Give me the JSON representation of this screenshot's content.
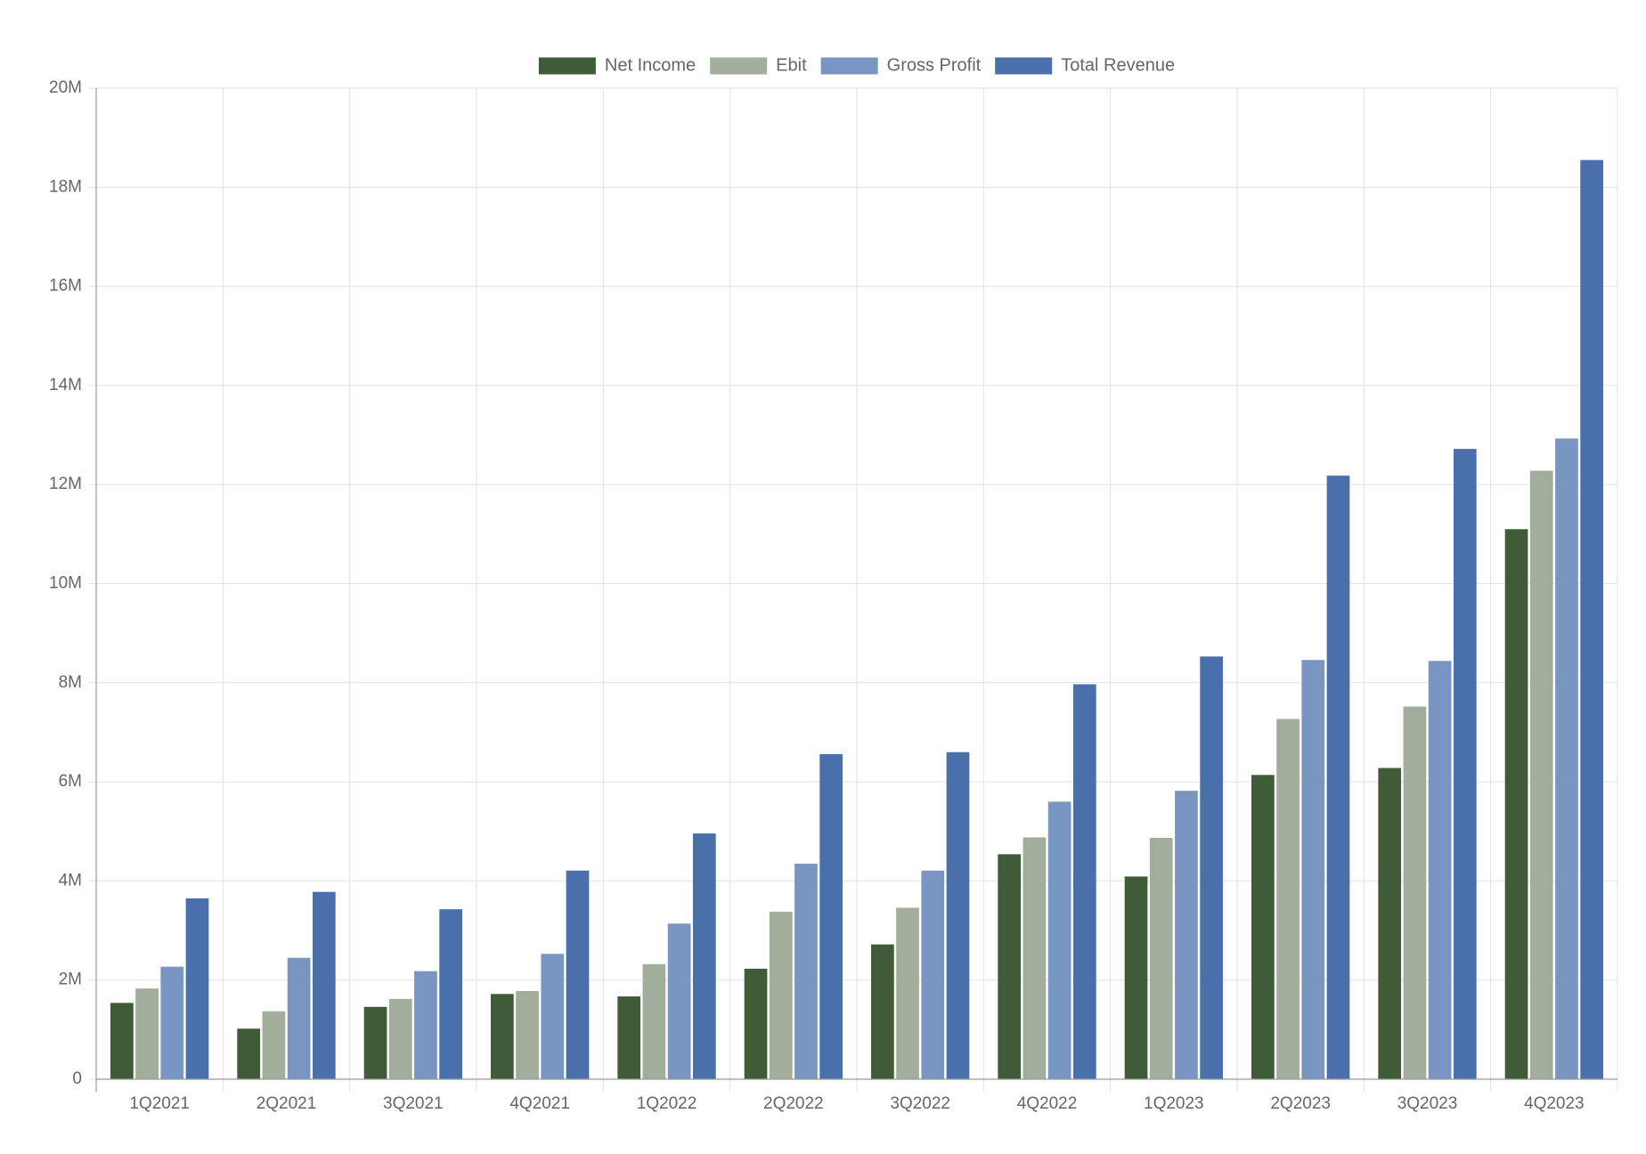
{
  "chart_data": {
    "type": "bar",
    "categories": [
      "1Q2021",
      "2Q2021",
      "3Q2021",
      "4Q2021",
      "1Q2022",
      "2Q2022",
      "3Q2022",
      "4Q2022",
      "1Q2023",
      "2Q2023",
      "3Q2023",
      "4Q2023"
    ],
    "series": [
      {
        "name": "Net Income",
        "color": "#3f5b37",
        "values": [
          1.54,
          1.02,
          1.46,
          1.72,
          1.67,
          2.23,
          2.72,
          4.54,
          4.09,
          6.14,
          6.28,
          11.1
        ]
      },
      {
        "name": "Ebit",
        "color": "#a1ae9b",
        "values": [
          1.83,
          1.37,
          1.62,
          1.78,
          2.32,
          3.38,
          3.46,
          4.88,
          4.87,
          7.27,
          7.52,
          12.28
        ]
      },
      {
        "name": "Gross Profit",
        "color": "#7995c2",
        "values": [
          2.27,
          2.45,
          2.18,
          2.53,
          3.14,
          4.35,
          4.21,
          5.6,
          5.82,
          8.46,
          8.44,
          12.93
        ]
      },
      {
        "name": "Total Revenue",
        "color": "#4a70ab",
        "values": [
          3.65,
          3.78,
          3.43,
          4.21,
          4.96,
          6.56,
          6.6,
          7.97,
          8.53,
          12.18,
          12.72,
          18.55
        ]
      }
    ],
    "ylim": [
      0,
      20
    ],
    "yticks": [
      "0",
      "2M",
      "4M",
      "6M",
      "8M",
      "10M",
      "12M",
      "14M",
      "16M",
      "18M",
      "20M"
    ],
    "grid": true,
    "legend_position": "top-center",
    "title": "",
    "xlabel": "",
    "ylabel": ""
  }
}
